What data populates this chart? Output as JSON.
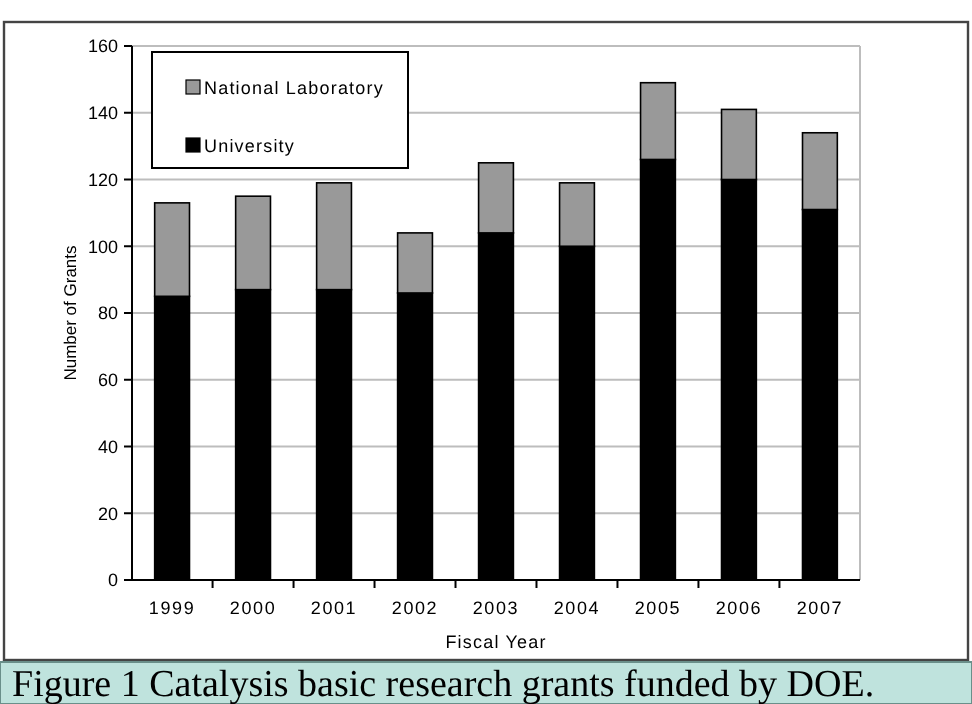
{
  "chart_data": {
    "type": "bar",
    "stacked": true,
    "xlabel": "Fiscal Year",
    "ylabel": "Number of Grants",
    "categories": [
      "1999",
      "2000",
      "2001",
      "2002",
      "2003",
      "2004",
      "2005",
      "2006",
      "2007"
    ],
    "series": [
      {
        "name": "University",
        "color": "#000000",
        "values": [
          85,
          87,
          87,
          86,
          104,
          100,
          126,
          120,
          111
        ]
      },
      {
        "name": "National Laboratory",
        "color": "#999999",
        "values": [
          28,
          28,
          32,
          18,
          21,
          19,
          23,
          21,
          23
        ]
      }
    ],
    "ylim": [
      0,
      160
    ],
    "yticks": [
      0,
      20,
      40,
      60,
      80,
      100,
      120,
      140,
      160
    ],
    "grid": "y",
    "legend": "top left",
    "annotations": [
      "Figure 1  Catalysis basic research grants funded by DOE."
    ]
  }
}
